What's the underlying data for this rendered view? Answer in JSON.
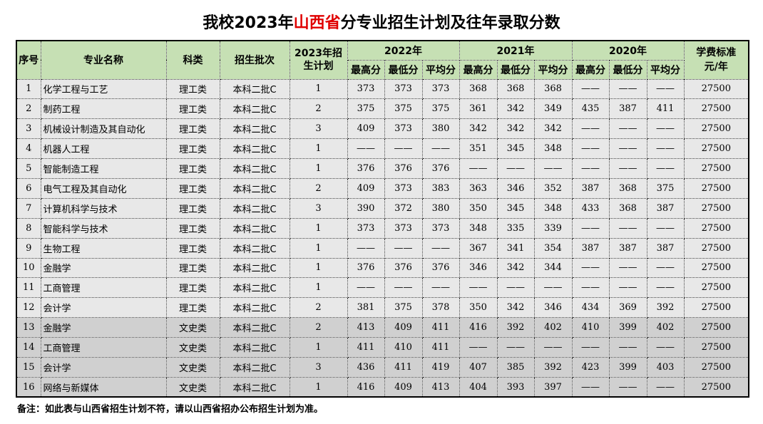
{
  "title": {
    "prefix": "我校2023年",
    "highlight": "山西省",
    "suffix": "分专业招生计划及往年录取分数"
  },
  "colors": {
    "header_bg": "#c6e0b4",
    "row_science": "#e8e8e8",
    "row_arts": "#d0d0d0",
    "highlight": "#e00000"
  },
  "headers": {
    "seq": "序号",
    "name": "专业名称",
    "type": "科类",
    "batch": "招生批次",
    "plan": "2023年招生计划",
    "years": [
      "2022年",
      "2021年",
      "2020年"
    ],
    "sub": [
      "最高分",
      "最低分",
      "平均分"
    ],
    "fee": "学费标准元/年"
  },
  "rows": [
    [
      "1",
      "化学工程与工艺",
      "理工类",
      "本科二批C",
      "1",
      "373",
      "373",
      "373",
      "368",
      "368",
      "368",
      "——",
      "——",
      "——",
      "27500"
    ],
    [
      "2",
      "制药工程",
      "理工类",
      "本科二批C",
      "2",
      "375",
      "375",
      "375",
      "361",
      "342",
      "349",
      "435",
      "387",
      "411",
      "27500"
    ],
    [
      "3",
      "机械设计制造及其自动化",
      "理工类",
      "本科二批C",
      "3",
      "409",
      "373",
      "380",
      "342",
      "342",
      "342",
      "——",
      "——",
      "——",
      "27500"
    ],
    [
      "4",
      "机器人工程",
      "理工类",
      "本科二批C",
      "1",
      "——",
      "——",
      "——",
      "351",
      "345",
      "348",
      "——",
      "——",
      "——",
      "27500"
    ],
    [
      "5",
      "智能制造工程",
      "理工类",
      "本科二批C",
      "1",
      "376",
      "376",
      "376",
      "——",
      "——",
      "——",
      "——",
      "——",
      "——",
      "27500"
    ],
    [
      "6",
      "电气工程及其自动化",
      "理工类",
      "本科二批C",
      "2",
      "409",
      "373",
      "383",
      "363",
      "346",
      "352",
      "387",
      "368",
      "375",
      "27500"
    ],
    [
      "7",
      "计算机科学与技术",
      "理工类",
      "本科二批C",
      "3",
      "390",
      "372",
      "380",
      "350",
      "345",
      "348",
      "433",
      "368",
      "387",
      "27500"
    ],
    [
      "8",
      "智能科学与技术",
      "理工类",
      "本科二批C",
      "1",
      "373",
      "373",
      "373",
      "348",
      "335",
      "339",
      "——",
      "——",
      "——",
      "27500"
    ],
    [
      "9",
      "生物工程",
      "理工类",
      "本科二批C",
      "1",
      "——",
      "——",
      "——",
      "367",
      "341",
      "354",
      "387",
      "387",
      "387",
      "27500"
    ],
    [
      "10",
      "金融学",
      "理工类",
      "本科二批C",
      "1",
      "376",
      "376",
      "376",
      "346",
      "342",
      "344",
      "——",
      "——",
      "——",
      "27500"
    ],
    [
      "11",
      "工商管理",
      "理工类",
      "本科二批C",
      "1",
      "——",
      "——",
      "——",
      "——",
      "——",
      "——",
      "——",
      "——",
      "——",
      "27500"
    ],
    [
      "12",
      "会计学",
      "理工类",
      "本科二批C",
      "2",
      "381",
      "375",
      "378",
      "350",
      "342",
      "346",
      "434",
      "369",
      "392",
      "27500"
    ],
    [
      "13",
      "金融学",
      "文史类",
      "本科二批C",
      "2",
      "413",
      "409",
      "411",
      "416",
      "392",
      "402",
      "410",
      "399",
      "402",
      "27500"
    ],
    [
      "14",
      "工商管理",
      "文史类",
      "本科二批C",
      "1",
      "411",
      "410",
      "411",
      "——",
      "——",
      "——",
      "——",
      "——",
      "——",
      "27500"
    ],
    [
      "15",
      "会计学",
      "文史类",
      "本科二批C",
      "3",
      "436",
      "411",
      "419",
      "407",
      "385",
      "392",
      "423",
      "399",
      "403",
      "27500"
    ],
    [
      "16",
      "网络与新媒体",
      "文史类",
      "本科二批C",
      "1",
      "416",
      "409",
      "413",
      "404",
      "393",
      "397",
      "——",
      "——",
      "——",
      "27500"
    ]
  ],
  "note": "备注：如此表与山西省招生计划不符，请以山西省招办公布招生计划为准。"
}
